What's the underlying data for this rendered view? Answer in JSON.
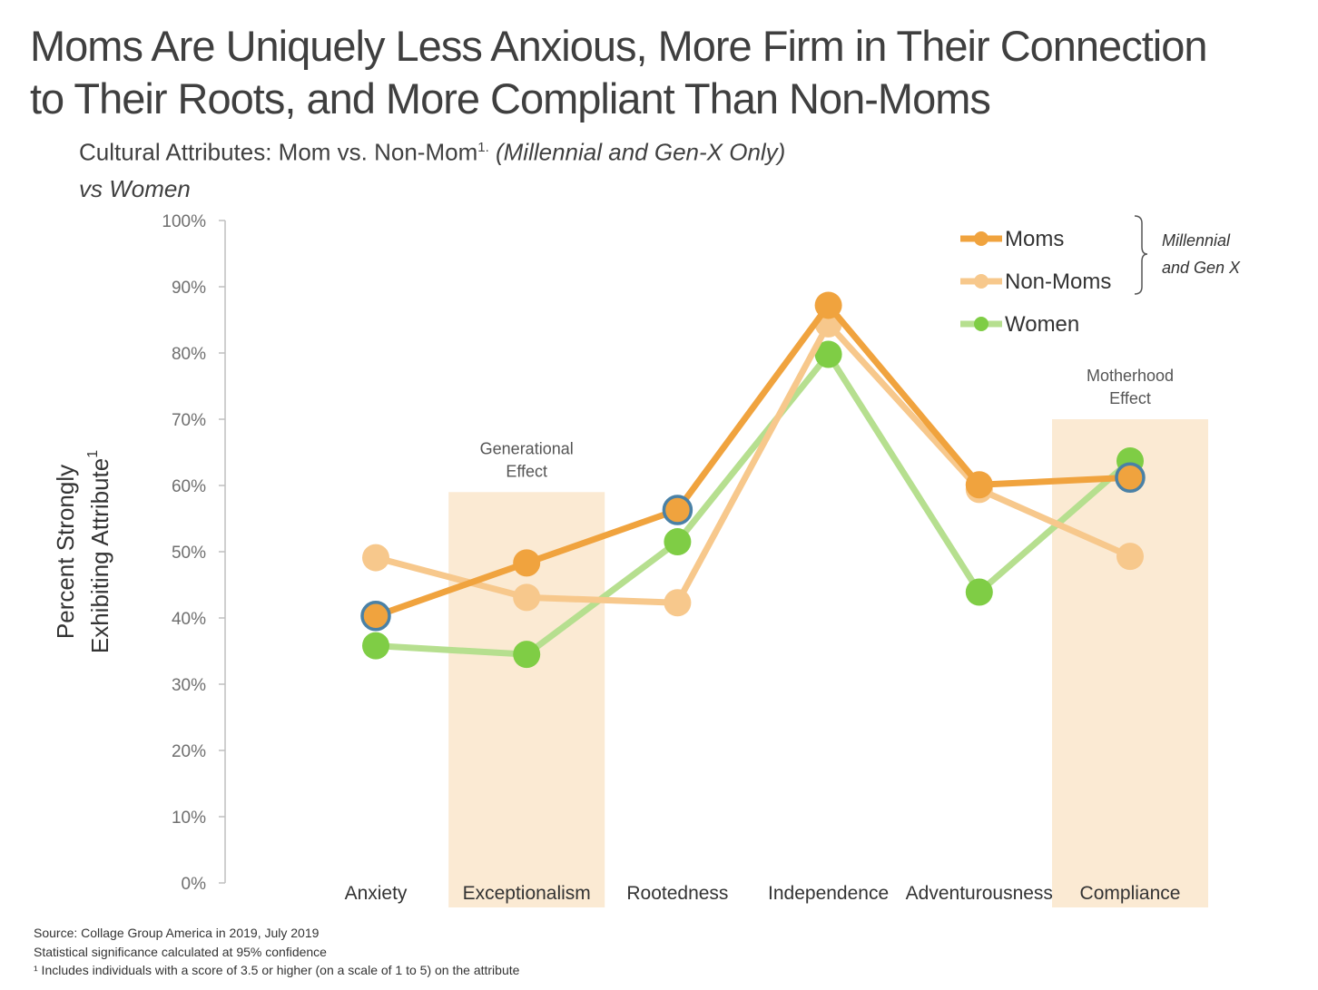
{
  "title": {
    "line1": "Moms Are Uniquely Less Anxious, More Firm in Their Connection",
    "line2": "to Their Roots, and More Compliant Than Non-Moms"
  },
  "subtitle": {
    "main": "Cultural Attributes: Mom vs. Non-Mom",
    "sup": "1.",
    "italic": "(Millennial and Gen-X Only)",
    "line2": "vs Women"
  },
  "footnotes": [
    "Source: Collage Group America in 2019, July 2019",
    "Statistical significance calculated at 95% confidence",
    "¹ Includes individuals with a score of 3.5 or higher (on a scale of 1 to 5) on the attribute"
  ],
  "colors": {
    "moms": "#f0a33e",
    "non_moms": "#f7c88c",
    "women": "#7fcd45",
    "women_line": "#b6df8f",
    "highlight_band": "#fbead3",
    "significance_ring": "#4a81a6"
  },
  "chart_data": {
    "type": "line",
    "ylabel_line1": "Percent Strongly",
    "ylabel_line2": "Exhibiting Attribute",
    "ylabel_sup": "1",
    "ylim": [
      0,
      100
    ],
    "yticks": [
      "0%",
      "10%",
      "20%",
      "30%",
      "40%",
      "50%",
      "60%",
      "70%",
      "80%",
      "90%",
      "100%"
    ],
    "categories": [
      "Anxiety",
      "Exceptionalism",
      "Rootedness",
      "Independence",
      "Adventurousness",
      "Compliance"
    ],
    "series": [
      {
        "name": "Women",
        "values": [
          35.8,
          34.5,
          51.5,
          79.8,
          43.9,
          63.7
        ]
      },
      {
        "name": "Non-Moms",
        "values": [
          49.1,
          43.1,
          42.3,
          84.4,
          59.4,
          49.3
        ]
      },
      {
        "name": "Moms",
        "values": [
          40.3,
          48.3,
          56.3,
          87.2,
          60.1,
          61.2
        ],
        "significant_points": [
          0,
          2,
          5
        ]
      }
    ],
    "legend_group_note": "Millennial\nand Gen X",
    "bands": [
      {
        "category": "Exceptionalism",
        "label": "Generational\nEffect",
        "top": 59
      },
      {
        "category": "Compliance",
        "label": "Motherhood\nEffect",
        "top": 70
      }
    ],
    "grid": false,
    "legend_position": "top-right"
  }
}
